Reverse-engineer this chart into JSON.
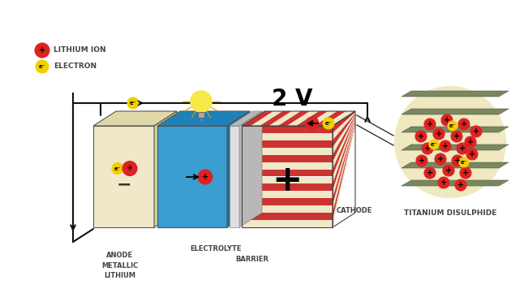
{
  "bg_color": "#ffffff",
  "title_2v": "2 V",
  "label_lithium_ion": "LITHIUM ION",
  "label_electron": "ELECTRON",
  "label_anode": "ANODE\nMETALLIC\nLITHIUM",
  "label_barrier": "BARRIER",
  "label_electrolyte": "ELECTROLYTE",
  "label_cathode": "CATHODE",
  "label_titanium": "TITANIUM DISULPHIDE",
  "color_anode": "#f0e8c8",
  "color_anode_side": "#d8cc9a",
  "color_anode_top": "#e0d8a8",
  "color_electrolyte": "#3a9fd0",
  "color_electrolyte_side": "#1a70a0",
  "color_electrolyte_top": "#2080b8",
  "color_cathode_red": "#cc3333",
  "color_cathode_cream": "#f0e8c8",
  "color_lithium_ion": "#dd2222",
  "color_electron": "#f0d000",
  "color_text": "#444444",
  "color_wire": "#111111",
  "color_barrier": "#e0e0e0",
  "color_barrier_side": "#b8b8b8",
  "color_tis2_bg": "#f0e8c0",
  "color_tis2_layer": "#7a8860",
  "color_tis2_gap": "#e8dfa0"
}
